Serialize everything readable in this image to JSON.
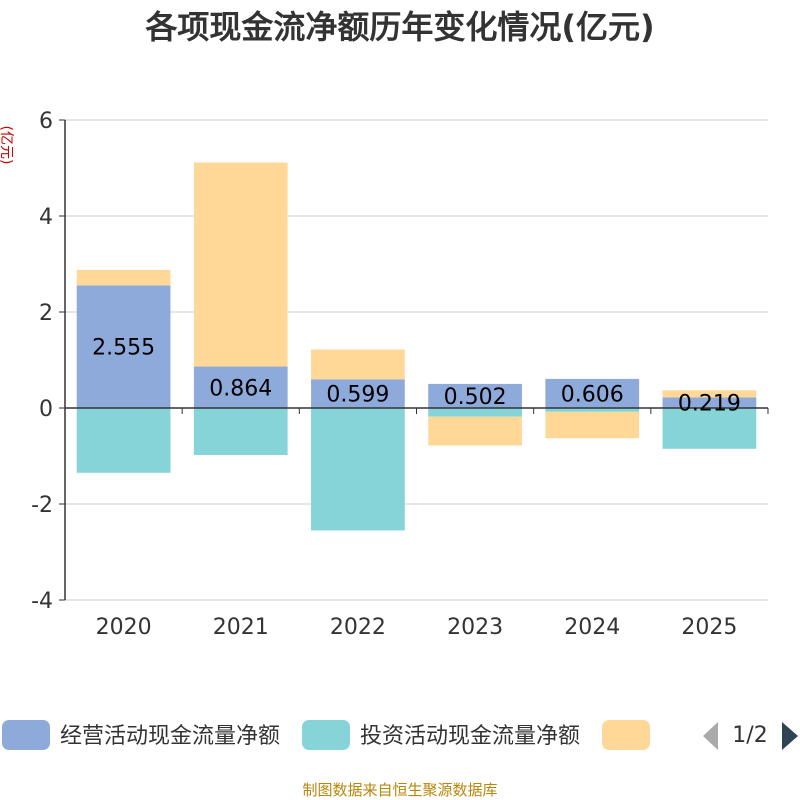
{
  "chart_data": {
    "type": "bar",
    "stacked": true,
    "title": "各项现金流净额历年变化情况(亿元)",
    "ylabel": "(亿元)",
    "xlabel": "",
    "categories": [
      "2020",
      "2021",
      "2022",
      "2023",
      "2024",
      "2025"
    ],
    "ylim": [
      -4,
      6
    ],
    "yticks": [
      -4,
      -2,
      0,
      2,
      4,
      6
    ],
    "grid": true,
    "series": [
      {
        "name": "经营活动现金流量净额",
        "color": "#8eaadb",
        "values": [
          2.555,
          0.864,
          0.599,
          0.502,
          0.606,
          0.219
        ]
      },
      {
        "name": "投资活动现金流量净额",
        "color": "#86d4d8",
        "values": [
          -1.35,
          -0.98,
          -2.55,
          -0.18,
          -0.08,
          -0.85
        ]
      },
      {
        "name": "",
        "color": "#ffd898",
        "values": [
          0.32,
          4.25,
          0.62,
          -0.6,
          -0.55,
          0.15
        ]
      }
    ],
    "data_labels": [
      "2.555",
      "0.864",
      "0.599",
      "0.502",
      "0.606",
      "0.219"
    ],
    "legend": {
      "position": "bottom",
      "page": "1/2"
    },
    "source": "制图数据来自恒生聚源数据库"
  }
}
